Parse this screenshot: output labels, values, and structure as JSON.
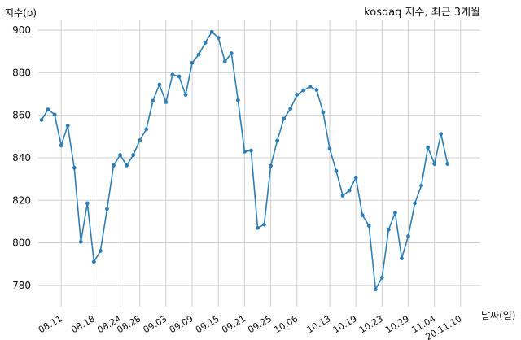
{
  "chart_data": {
    "type": "line",
    "title": "kosdaq 지수, 최근 3개월",
    "xlabel": "날짜(일)",
    "ylabel": "지수(p)",
    "ylim": [
      770,
      905
    ],
    "yticks": [
      780,
      800,
      820,
      840,
      860,
      880,
      900
    ],
    "grid": true,
    "x_tick_labels": [
      "08.11",
      "08.18",
      "08.24",
      "08.28",
      "09.03",
      "09.09",
      "09.15",
      "09.21",
      "09.25",
      "10.06",
      "10.13",
      "10.19",
      "10.23",
      "10.29",
      "11.04",
      "20.11.10"
    ],
    "x_tick_positions": [
      3,
      8,
      12,
      15,
      19,
      23,
      27,
      31,
      35,
      39,
      44,
      48,
      52,
      56,
      60,
      64
    ],
    "x_range": [
      -0.5,
      67
    ],
    "color": "#2f7eb3",
    "series": [
      {
        "values": [
          857.8,
          862.7,
          860.3,
          845.8,
          855.1,
          835.3,
          800.5,
          818.6,
          791.1,
          796.2,
          815.9,
          836.4,
          841.3,
          836.4,
          841.3,
          848.2,
          853.4,
          866.8,
          874.4,
          866.2,
          879.1,
          878.2,
          869.6,
          884.6,
          888.5,
          894.1,
          899.2,
          896.4,
          885.3,
          889.1,
          867.0,
          842.9,
          843.4,
          807.0,
          808.6,
          836.2,
          848.1,
          858.4,
          863.0,
          869.6,
          871.7,
          873.5,
          871.9,
          861.4,
          844.3,
          833.8,
          822.2,
          824.6,
          830.7,
          813.0,
          808.1,
          778.1,
          783.7,
          806.2,
          814.1,
          792.7,
          803.1,
          818.6,
          826.9,
          844.9,
          837.1,
          851.2,
          837.1
        ]
      }
    ]
  }
}
